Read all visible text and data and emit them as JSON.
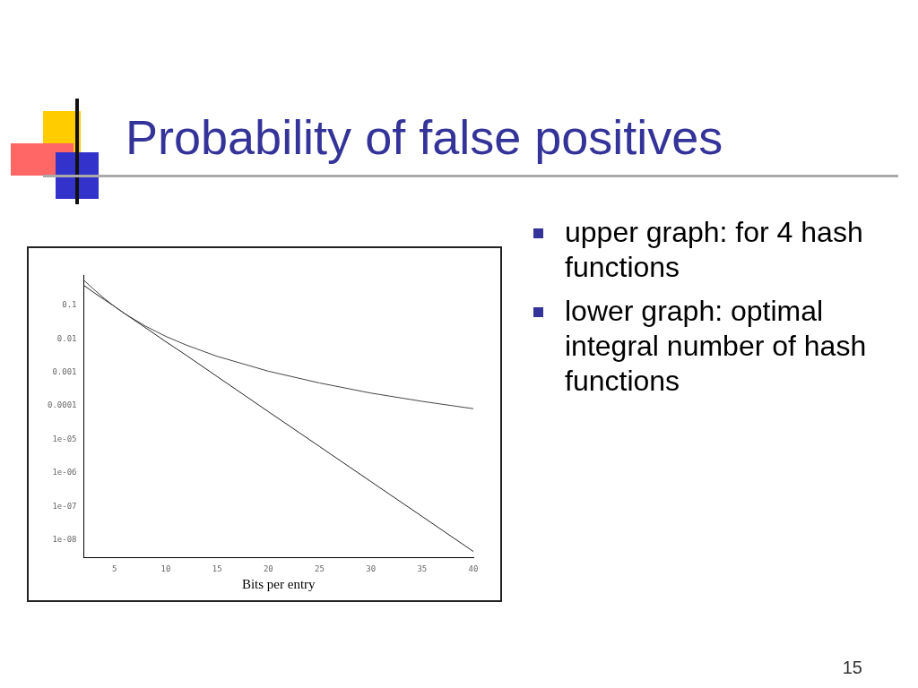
{
  "chart_data": {
    "type": "line",
    "title": "Probability of false positives",
    "xlabel": "Bits per entry",
    "x": [
      2,
      3,
      4,
      5,
      6,
      8,
      10,
      12,
      15,
      20,
      25,
      30,
      35,
      40
    ],
    "series": [
      {
        "color": "#444444",
        "values": [
          0.559,
          0.294,
          0.16,
          0.092,
          0.056,
          0.024,
          0.0118,
          0.0065,
          0.003,
          0.00108,
          0.00048,
          0.00024,
          0.000136,
          8.2e-05
        ]
      },
      {
        "color": "#222222",
        "values": [
          0.393,
          0.237,
          0.147,
          0.092,
          0.056,
          0.0216,
          0.0082,
          0.0032,
          0.00075,
          6.7e-05,
          6.1e-06,
          5.5e-07,
          5e-08,
          4.5e-09
        ]
      }
    ],
    "xlim": [
      2,
      40
    ],
    "xticks": [
      5,
      10,
      15,
      20,
      25,
      30,
      35,
      40
    ],
    "ylim": [
      3e-09,
      0.8
    ],
    "yticks": [
      {
        "value": 0.1,
        "label": "0.1"
      },
      {
        "value": 0.01,
        "label": "0.01"
      },
      {
        "value": 0.001,
        "label": "0.001"
      },
      {
        "value": 0.0001,
        "label": "0.0001"
      },
      {
        "value": 1e-05,
        "label": "1e-05"
      },
      {
        "value": 1e-06,
        "label": "1e-06"
      },
      {
        "value": 1e-07,
        "label": "1e-07"
      },
      {
        "value": 1e-08,
        "label": "1e-08"
      }
    ],
    "log": "y",
    "grid": false,
    "marker": "none",
    "annotations": [
      "upper graph: for 4 hash functions",
      "lower graph: optimal integral number of hash functions",
      "15"
    ]
  }
}
